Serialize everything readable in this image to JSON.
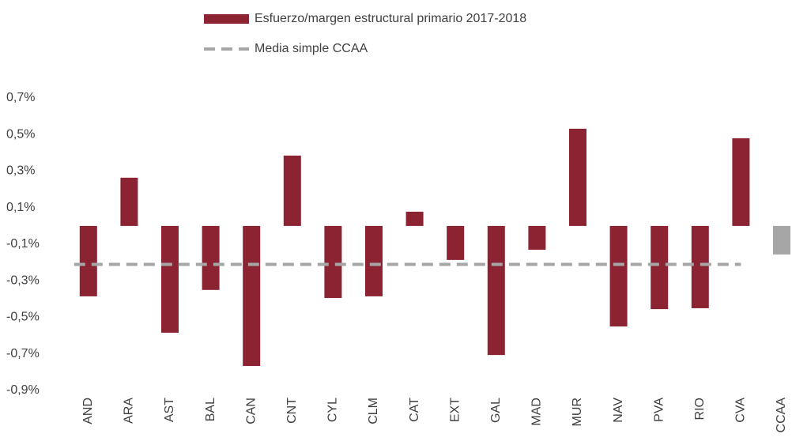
{
  "chart_data": {
    "type": "bar",
    "categories": [
      "AND",
      "ARA",
      "AST",
      "BAL",
      "CAN",
      "CNT",
      "CYL",
      "CLM",
      "CAT",
      "EXT",
      "GAL",
      "MAD",
      "MUR",
      "NAV",
      "PVA",
      "RIO",
      "CVA",
      "CCAA"
    ],
    "series": [
      {
        "name": "Esfuerzo/margen estructural primario 2017-2018",
        "type": "bar",
        "color": "#8b2332",
        "colors": [
          "#8b2332",
          "#8b2332",
          "#8b2332",
          "#8b2332",
          "#8b2332",
          "#8b2332",
          "#8b2332",
          "#8b2332",
          "#8b2332",
          "#8b2332",
          "#8b2332",
          "#8b2332",
          "#8b2332",
          "#8b2332",
          "#8b2332",
          "#8b2332",
          "#8b2332",
          "#a6a6a6"
        ],
        "values": [
          -0.385,
          0.264,
          -0.584,
          -0.35,
          -0.766,
          0.385,
          -0.394,
          -0.385,
          0.078,
          -0.186,
          -0.706,
          -0.13,
          0.532,
          -0.55,
          -0.455,
          -0.45,
          0.48,
          -0.156
        ]
      },
      {
        "name": "Media simple CCAA",
        "type": "line",
        "color": "#a6a6a6",
        "dashed": true,
        "values": [
          -0.21,
          -0.21,
          -0.21,
          -0.21,
          -0.21,
          -0.21,
          -0.21,
          -0.21,
          -0.21,
          -0.21,
          -0.21,
          -0.21,
          -0.21,
          -0.21,
          -0.21,
          -0.21,
          -0.21,
          null
        ]
      }
    ],
    "ylim": [
      -0.9,
      0.7
    ],
    "yticks": [
      {
        "value": 0.7,
        "label": "0,7%"
      },
      {
        "value": 0.5,
        "label": "0,5%"
      },
      {
        "value": 0.3,
        "label": "0,3%"
      },
      {
        "value": 0.1,
        "label": "0,1%"
      },
      {
        "value": -0.1,
        "label": "-0,1%"
      },
      {
        "value": -0.3,
        "label": "-0,3%"
      },
      {
        "value": -0.5,
        "label": "-0,5%"
      },
      {
        "value": -0.7,
        "label": "-0,7%"
      },
      {
        "value": -0.9,
        "label": "-0,9%"
      }
    ],
    "grid": false,
    "legend": "top"
  }
}
